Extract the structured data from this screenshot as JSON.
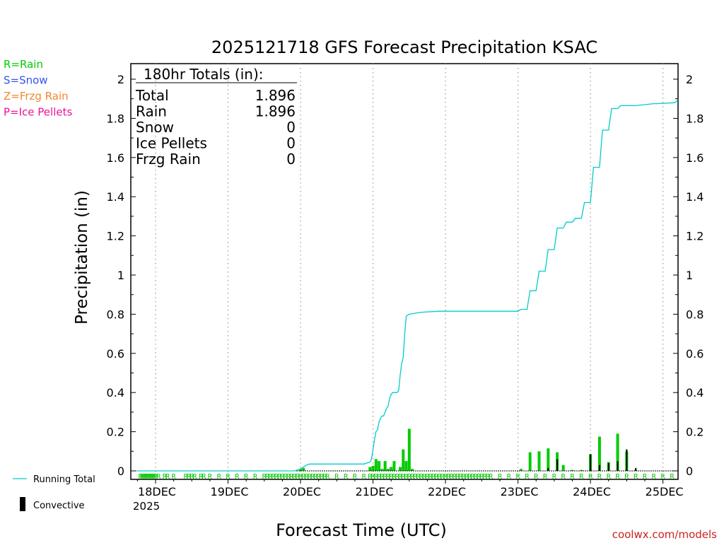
{
  "chart_data": {
    "type": "bar",
    "title": "2025121718 GFS Forecast Precipitation KSAC",
    "xlabel": "Forecast Time (UTC)",
    "ylabel": "Precipitation (in)",
    "ylim": [
      0,
      2.1
    ],
    "xlim_hours": [
      -2.2,
      179
    ],
    "y_ticks": [
      0,
      0.2,
      0.4,
      0.6,
      0.8,
      1,
      1.2,
      1.4,
      1.6,
      1.8,
      2
    ],
    "y_tick_labels": [
      "0",
      "0.2",
      "0.4",
      "0.6",
      "0.8",
      "1",
      "1.2",
      "1.4",
      "1.6",
      "1.8",
      "2"
    ],
    "x_ticks": [
      {
        "label": "18DEC",
        "hour": 6
      },
      {
        "label": "19DEC",
        "hour": 30
      },
      {
        "label": "20DEC",
        "hour": 54
      },
      {
        "label": "21DEC",
        "hour": 78
      },
      {
        "label": "22DEC",
        "hour": 102
      },
      {
        "label": "23DEC",
        "hour": 126
      },
      {
        "label": "24DEC",
        "hour": 150
      },
      {
        "label": "25DEC",
        "hour": 174
      }
    ],
    "x_sublabel": "2025",
    "legend_types": [
      {
        "text": "R=Rain",
        "color": "#00cc00"
      },
      {
        "text": "S=Snow",
        "color": "#3355ee"
      },
      {
        "text": "Z=Frzg Rain",
        "color": "#ee8833"
      },
      {
        "text": "P=Ice Pellets",
        "color": "#ee1199"
      }
    ],
    "legend_lines": [
      {
        "text": "Running Total",
        "color": "#00cccc"
      },
      {
        "text": "Convective",
        "color": "#000000"
      }
    ],
    "totals": {
      "heading": "180hr Totals (in):",
      "rows": [
        {
          "label": "Total",
          "value": "1.896"
        },
        {
          "label": "Rain",
          "value": "1.896"
        },
        {
          "label": "Snow",
          "value": "0"
        },
        {
          "label": "Ice Pellets",
          "value": "0"
        },
        {
          "label": "Frzg Rain",
          "value": "0"
        }
      ]
    },
    "series": [
      {
        "name": "Running Total",
        "color": "#00cccc",
        "x": [
          0,
          52,
          54,
          55,
          56,
          57,
          75,
          76,
          77,
          77.5,
          78,
          78.5,
          79,
          79.5,
          80,
          80.5,
          81,
          81.5,
          82,
          82.5,
          83,
          83.5,
          84,
          84.5,
          86,
          86.5,
          87,
          87.5,
          88,
          88.5,
          89,
          90,
          94,
          100,
          110,
          120,
          126,
          127,
          129,
          130,
          132,
          133,
          135,
          136,
          138,
          139,
          141,
          142,
          144,
          145,
          147,
          148,
          150,
          151,
          153,
          154,
          156,
          157,
          159,
          160,
          162,
          163,
          165,
          171,
          172,
          178,
          179
        ],
        "values": [
          0,
          0,
          0.01,
          0.02,
          0.03,
          0.035,
          0.035,
          0.04,
          0.045,
          0.06,
          0.11,
          0.16,
          0.2,
          0.21,
          0.25,
          0.27,
          0.28,
          0.28,
          0.3,
          0.32,
          0.33,
          0.37,
          0.39,
          0.4,
          0.4,
          0.41,
          0.49,
          0.55,
          0.58,
          0.7,
          0.79,
          0.8,
          0.81,
          0.815,
          0.815,
          0.815,
          0.815,
          0.825,
          0.825,
          0.92,
          0.92,
          1.02,
          1.02,
          1.13,
          1.13,
          1.24,
          1.24,
          1.27,
          1.27,
          1.29,
          1.29,
          1.37,
          1.37,
          1.55,
          1.55,
          1.74,
          1.74,
          1.85,
          1.85,
          1.865,
          1.865,
          1.865,
          1.865,
          1.875,
          1.875,
          1.88,
          1.896
        ]
      },
      {
        "name": "Rain",
        "color": "#00cc00",
        "x": [
          54,
          55,
          77,
          78,
          79,
          80,
          81,
          82,
          83,
          84,
          85,
          87,
          88,
          89,
          90,
          91,
          127,
          130,
          133,
          136,
          139,
          141,
          144,
          147,
          150,
          153,
          156,
          159,
          162,
          165
        ],
        "values": [
          0.01,
          0.015,
          0.02,
          0.025,
          0.06,
          0.05,
          0.01,
          0.05,
          0.01,
          0.02,
          0.05,
          0.02,
          0.11,
          0.05,
          0.215,
          0.01,
          0.01,
          0.095,
          0.1,
          0.115,
          0.095,
          0.03,
          0.005,
          0.005,
          0.085,
          0.175,
          0.045,
          0.19,
          0.1,
          0.005
        ]
      },
      {
        "name": "Convective",
        "color": "#000000",
        "x": [
          136,
          139,
          150,
          153,
          156,
          159,
          162,
          165
        ],
        "values": [
          0.015,
          0.06,
          0.085,
          0.03,
          0.04,
          0.05,
          0.11,
          0.015
        ]
      }
    ],
    "type_markers": {
      "symbol": "R",
      "hours": [
        1,
        1.5,
        2,
        2.5,
        3,
        3.5,
        4,
        4.5,
        5,
        5.5,
        6,
        7,
        9,
        10,
        12,
        16,
        17,
        18,
        19,
        21,
        22,
        24,
        27,
        30,
        33,
        36,
        39,
        42,
        43,
        44,
        45,
        46,
        47,
        48,
        49,
        50,
        51,
        52,
        53,
        54,
        55,
        56,
        57,
        58,
        59,
        60,
        61,
        62,
        63,
        66,
        69,
        72,
        75,
        77,
        78,
        79,
        80,
        81,
        82,
        83,
        84,
        85,
        86,
        87,
        88,
        89,
        90,
        91,
        92,
        93,
        94,
        95,
        96,
        97,
        98,
        99,
        100,
        101,
        102,
        103,
        104,
        105,
        106,
        107,
        108,
        109,
        110,
        111,
        112,
        113,
        114,
        115,
        116,
        117,
        120,
        123,
        126,
        129,
        132,
        135,
        138,
        141,
        144,
        147,
        150,
        153,
        156,
        159,
        162,
        165,
        168,
        171,
        174,
        177
      ]
    },
    "credit": "coolwx.com/models"
  }
}
